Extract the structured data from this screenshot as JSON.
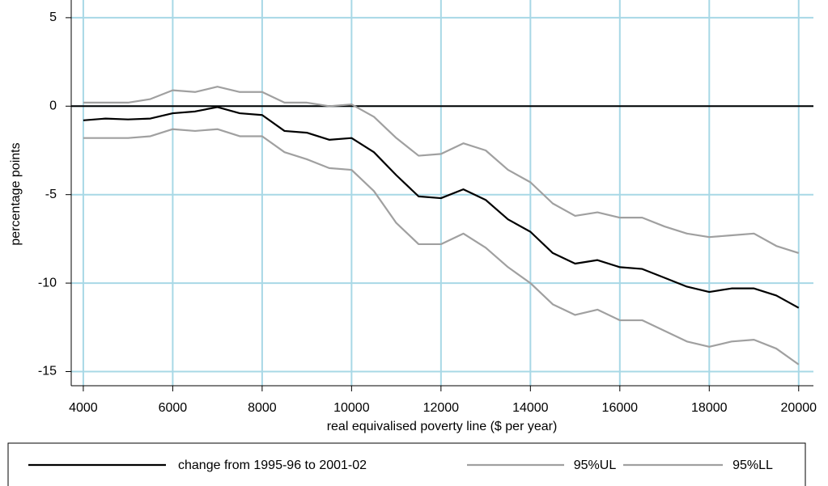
{
  "chart_data": {
    "type": "line",
    "x_label": "real equivalised poverty line ($ per year)",
    "y_label": "percentage points",
    "x": [
      4000,
      4500,
      5000,
      5500,
      6000,
      6500,
      7000,
      7500,
      8000,
      8500,
      9000,
      9500,
      10000,
      10500,
      11000,
      11500,
      12000,
      12500,
      13000,
      13500,
      14000,
      14500,
      15000,
      15500,
      16000,
      16500,
      17000,
      17500,
      18000,
      18500,
      19000,
      19500,
      20000
    ],
    "series": [
      {
        "name": "change from 1995-96 to 2001-02",
        "color": "#000000",
        "values": [
          -0.8,
          -0.7,
          -0.75,
          -0.7,
          -0.4,
          -0.3,
          -0.05,
          -0.4,
          -0.5,
          -1.4,
          -1.5,
          -1.9,
          -1.8,
          -2.6,
          -3.9,
          -5.1,
          -5.2,
          -4.7,
          -5.3,
          -6.4,
          -7.1,
          -8.3,
          -8.9,
          -8.7,
          -9.1,
          -9.2,
          -9.7,
          -10.2,
          -10.5,
          -10.3,
          -10.3,
          -10.7,
          -11.4
        ]
      },
      {
        "name": "95%UL",
        "color": "#a0a0a0",
        "values": [
          0.2,
          0.2,
          0.2,
          0.4,
          0.9,
          0.8,
          1.1,
          0.8,
          0.8,
          0.2,
          0.2,
          0,
          0.1,
          -0.6,
          -1.8,
          -2.8,
          -2.7,
          -2.1,
          -2.5,
          -3.6,
          -4.3,
          -5.5,
          -6.2,
          -6,
          -6.3,
          -6.3,
          -6.8,
          -7.2,
          -7.4,
          -7.3,
          -7.2,
          -7.9,
          -8.3
        ]
      },
      {
        "name": "95%LL",
        "color": "#a0a0a0",
        "values": [
          -1.8,
          -1.8,
          -1.8,
          -1.7,
          -1.3,
          -1.4,
          -1.3,
          -1.7,
          -1.7,
          -2.6,
          -3.0,
          -3.5,
          -3.6,
          -4.8,
          -6.6,
          -7.8,
          -7.8,
          -7.2,
          -8.0,
          -9.1,
          -10.0,
          -11.2,
          -11.8,
          -11.5,
          -12.1,
          -12.1,
          -12.7,
          -13.3,
          -13.6,
          -13.3,
          -13.2,
          -13.7,
          -14.6
        ]
      }
    ],
    "xlim": [
      3730,
      20330
    ],
    "ylim": [
      -15.8,
      6.0
    ],
    "xticks": [
      4000,
      6000,
      8000,
      10000,
      12000,
      14000,
      16000,
      18000,
      20000
    ],
    "yticks": [
      -15,
      -10,
      -5,
      0,
      5
    ],
    "grid": true,
    "grid_color": "#a8d8e6",
    "reference_line": 0,
    "legend": "bottom"
  }
}
